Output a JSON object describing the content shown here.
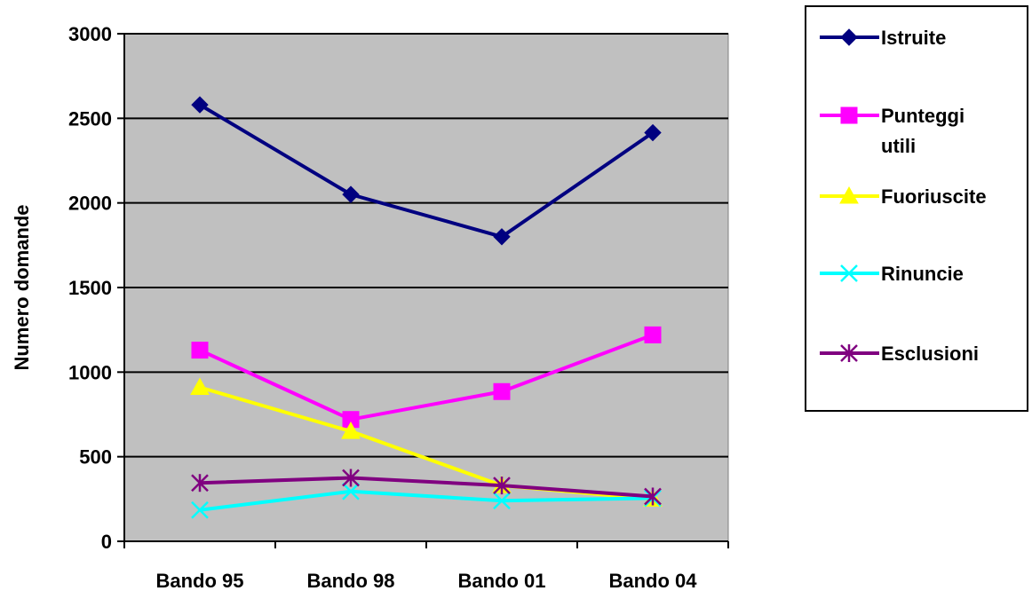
{
  "chart_data": {
    "type": "line",
    "categories": [
      "Bando 95",
      "Bando 98",
      "Bando 01",
      "Bando 04"
    ],
    "ylabel": "Numero domande",
    "xlabel": "",
    "ylim": [
      0,
      3000
    ],
    "yticks": [
      0,
      500,
      1000,
      1500,
      2000,
      2500,
      3000
    ],
    "grid": true,
    "legend_position": "right",
    "plot_background": "#c0c0c0",
    "series": [
      {
        "name": "Istruite",
        "values": [
          2580,
          2050,
          1800,
          2415
        ],
        "color": "#000080",
        "marker": "diamond"
      },
      {
        "name": "Punteggi utili",
        "legend_lines": [
          "Punteggi",
          "utili"
        ],
        "values": [
          1130,
          720,
          885,
          1220
        ],
        "color": "#ff00ff",
        "marker": "square"
      },
      {
        "name": "Fuoriuscite",
        "values": [
          910,
          650,
          330,
          250
        ],
        "color": "#ffff00",
        "marker": "triangle"
      },
      {
        "name": "Rinuncie",
        "values": [
          185,
          295,
          240,
          255
        ],
        "color": "#00ffff",
        "marker": "x"
      },
      {
        "name": "Esclusioni",
        "values": [
          345,
          375,
          330,
          265
        ],
        "color": "#800080",
        "marker": "star"
      }
    ]
  }
}
